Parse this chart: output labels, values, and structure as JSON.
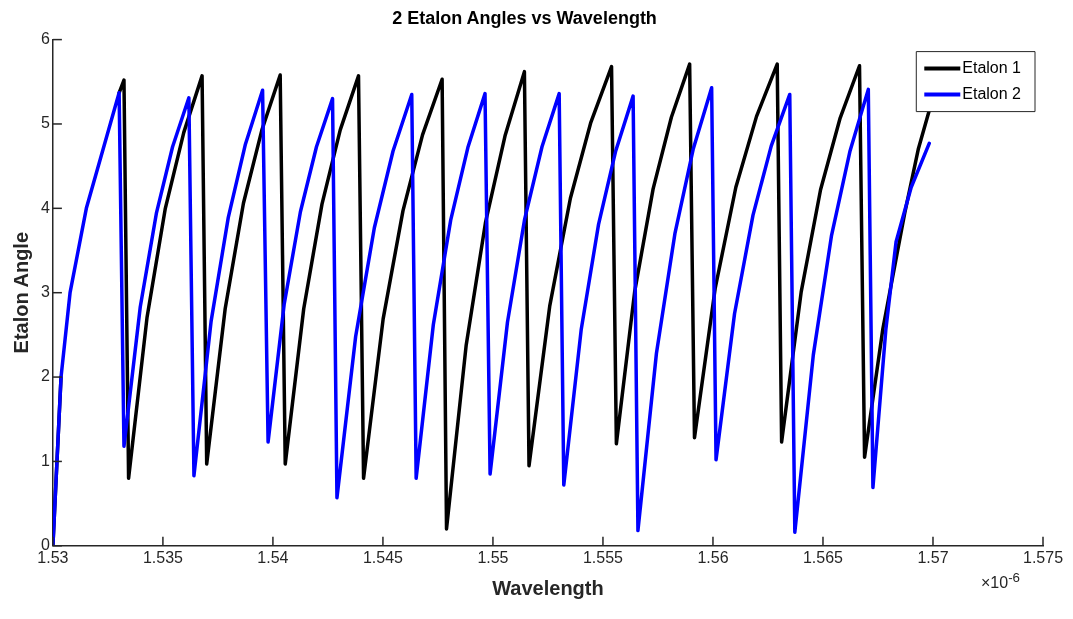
{
  "chart_data": {
    "type": "line",
    "title": "2 Etalon Angles vs Wavelength",
    "xlabel": "Wavelength",
    "ylabel": "Etalon Angle",
    "annotations": [
      "×10$^{-6}$"
    ],
    "xlim": [
      1.53,
      1.575
    ],
    "xticks": [
      1.53,
      1.535,
      1.54,
      1.545,
      1.55,
      1.555,
      1.56,
      1.565,
      1.57,
      1.575
    ],
    "ylim": [
      0,
      6
    ],
    "yticks": [
      0,
      1,
      2,
      3,
      4,
      5,
      6
    ],
    "grid": false,
    "legend": "top right",
    "marker": "none",
    "line_style": "solid",
    "series": [
      {
        "name": "Etalon 1",
        "color": "#000000",
        "x": [
          1.53,
          1.53037,
          1.53078,
          1.53152,
          1.53301,
          1.53323,
          1.53344,
          1.53428,
          1.53511,
          1.53595,
          1.53678,
          1.53699,
          1.53783,
          1.53866,
          1.5395,
          1.54033,
          1.54056,
          1.5414,
          1.54223,
          1.54306,
          1.54389,
          1.54412,
          1.54501,
          1.54591,
          1.5468,
          1.54769,
          1.54789,
          1.54878,
          1.54966,
          1.55055,
          1.55143,
          1.55164,
          1.55258,
          1.55352,
          1.55445,
          1.55539,
          1.55561,
          1.55644,
          1.55728,
          1.55811,
          1.55894,
          1.55916,
          1.5601,
          1.56104,
          1.56198,
          1.56292,
          1.56312,
          1.56401,
          1.56489,
          1.56578,
          1.56666,
          1.56689,
          1.56772,
          1.56872,
          1.56933,
          1.56983
        ],
        "values": [
          0,
          2.0,
          null,
          null,
          5.37,
          5.52,
          0.8,
          2.71,
          4.0,
          4.9,
          5.57,
          0.97,
          2.81,
          4.06,
          4.93,
          5.58,
          0.97,
          2.81,
          4.05,
          4.93,
          5.57,
          0.8,
          2.69,
          3.97,
          4.87,
          5.53,
          0.2,
          2.37,
          3.83,
          4.86,
          5.62,
          0.95,
          2.84,
          4.12,
          5.02,
          5.68,
          1.21,
          3.01,
          4.23,
          5.08,
          5.71,
          1.28,
          3.05,
          4.25,
          5.09,
          5.71,
          1.23,
          3.01,
          4.22,
          5.07,
          5.69,
          1.05,
          2.57,
          3.95,
          4.7,
          5.16
        ]
      },
      {
        "name": "Etalon 2",
        "color": "#0000ff",
        "x": [
          1.53,
          1.53037,
          1.53078,
          1.53152,
          1.53301,
          1.53323,
          1.53397,
          1.53471,
          1.53544,
          1.53618,
          1.53641,
          1.53719,
          1.53797,
          1.53875,
          1.53953,
          1.53978,
          1.54051,
          1.54125,
          1.54198,
          1.54271,
          1.54291,
          1.54376,
          1.54461,
          1.54546,
          1.54631,
          1.54651,
          1.54729,
          1.54808,
          1.54886,
          1.54964,
          1.54987,
          1.55066,
          1.55144,
          1.55223,
          1.55301,
          1.55322,
          1.55401,
          1.5548,
          1.55558,
          1.55637,
          1.55659,
          1.55743,
          1.55827,
          1.5591,
          1.55994,
          1.56014,
          1.56098,
          1.56182,
          1.56265,
          1.56349,
          1.56372,
          1.56456,
          1.56539,
          1.56623,
          1.56706,
          1.56727,
          1.56786,
          1.56832,
          1.56901,
          1.56983
        ],
        "values": [
          0,
          2.0,
          3.0,
          4.0,
          5.37,
          1.18,
          2.83,
          3.95,
          4.73,
          5.31,
          0.83,
          2.66,
          3.89,
          4.76,
          5.4,
          1.23,
          2.86,
          3.96,
          4.73,
          5.3,
          0.57,
          2.48,
          3.77,
          4.68,
          5.35,
          0.8,
          2.62,
          3.86,
          4.72,
          5.36,
          0.85,
          2.65,
          3.87,
          4.73,
          5.36,
          0.72,
          2.56,
          3.81,
          4.68,
          5.33,
          0.18,
          2.28,
          3.7,
          4.7,
          5.43,
          1.02,
          2.75,
          3.92,
          4.74,
          5.35,
          0.16,
          2.26,
          3.68,
          4.68,
          5.41,
          0.69,
          2.57,
          3.6,
          4.25,
          4.77
        ]
      }
    ]
  }
}
